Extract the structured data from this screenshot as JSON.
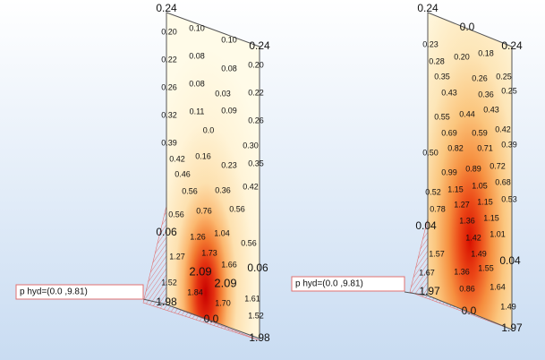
{
  "panels": [
    {
      "legend": "p hyd=(0.0      ,9.81)",
      "labels": [
        "0.24",
        "0.24",
        "0.06",
        "0.06",
        "1.98",
        "0.0",
        "1.98",
        "0.20",
        "0.10",
        "0.10",
        "0.20",
        "0.22",
        "0.08",
        "0.08",
        "0.26",
        "0.08",
        "0.03",
        "0.22",
        "0.32",
        "0.11",
        "0.09",
        "0.26",
        "0.0",
        "0.39",
        "0.30",
        "0.42",
        "0.16",
        "0.23",
        "0.35",
        "0.46",
        "0.56",
        "0.36",
        "0.42",
        "0.56",
        "0.76",
        "0.56",
        "1.26",
        "1.04",
        "0.56",
        "1.27",
        "1.73",
        "1.66",
        "1.52",
        "2.09",
        "2.09",
        "1.84",
        "1.70",
        "1.61",
        "1.52"
      ]
    },
    {
      "legend": "p hyd=(0.0      ,9.81)",
      "labels": [
        "0.24",
        "0.0",
        "0.24",
        "0.04",
        "0.04",
        "1.97",
        "0.0",
        "1.97",
        "0.23",
        "0.20",
        "0.18",
        "0.28",
        "0.26",
        "0.25",
        "0.35",
        "0.43",
        "0.36",
        "0.25",
        "0.55",
        "0.44",
        "0.43",
        "0.69",
        "0.59",
        "0.42",
        "0.82",
        "0.71",
        "0.39",
        "0.50",
        "0.99",
        "0.89",
        "0.72",
        "1.15",
        "1.05",
        "0.68",
        "0.52",
        "1.27",
        "1.15",
        "0.53",
        "0.78",
        "1.36",
        "1.15",
        "1.42",
        "1.01",
        "1.57",
        "1.49",
        "1.67",
        "1.36",
        "1.55",
        "0.86",
        "1.64",
        "1.49"
      ]
    }
  ]
}
